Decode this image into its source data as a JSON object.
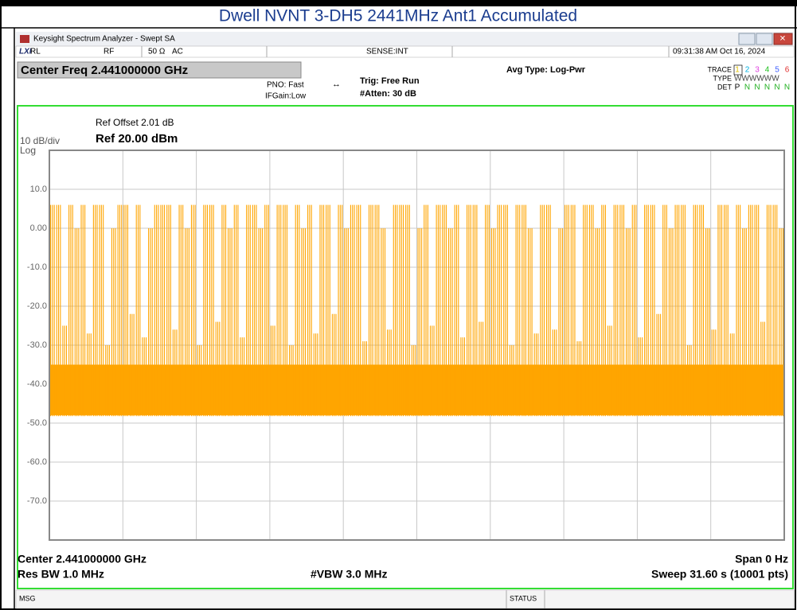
{
  "page_title": "Dwell NVNT 3-DH5 2441MHz Ant1 Accumulated",
  "window": {
    "title": "Keysight Spectrum Analyzer - Swept SA"
  },
  "status_row": {
    "rl": "RL",
    "rf": "RF",
    "impedance": "50 Ω",
    "coupling": "AC",
    "sense": "SENSE:INT",
    "datetime": "09:31:38 AM Oct 16, 2024"
  },
  "settings": {
    "center_freq": "Center Freq 2.441000000 GHz",
    "pno": "PNO: Fast",
    "ifgain": "IFGain:Low",
    "trig": "Trig: Free Run",
    "atten": "#Atten: 30 dB",
    "avg_type": "Avg Type: Log-Pwr",
    "trace_label": "TRACE",
    "trace_numbers": [
      "1",
      "2",
      "3",
      "4",
      "5",
      "6"
    ],
    "type_label": "TYPE",
    "type_value": "WWWWWW",
    "det_label": "DET",
    "det_values": [
      "P",
      "N",
      "N",
      "N",
      "N",
      "N"
    ]
  },
  "display": {
    "ref_offset": "Ref Offset 2.01 dB",
    "scale": "10 dB/div",
    "ref_level": "Ref 20.00 dBm",
    "log": "Log"
  },
  "footer": {
    "center": "Center 2.441000000 GHz",
    "span": "Span 0 Hz",
    "res_bw": "Res BW 1.0 MHz",
    "vbw": "#VBW 3.0 MHz",
    "sweep": "Sweep  31.60 s (10001 pts)"
  },
  "status_bar": {
    "msg": "MSG",
    "status": "STATUS"
  },
  "chart_data": {
    "type": "bursts",
    "color": "#ffa500",
    "noise_floor": -48,
    "dense_level": -35,
    "ylim": [
      -80,
      20
    ],
    "yticks": [
      {
        "value": 10,
        "label": "10.0"
      },
      {
        "value": 0,
        "label": "0.00"
      },
      {
        "value": -10,
        "label": "-10.0"
      },
      {
        "value": -20,
        "label": "-20.0"
      },
      {
        "value": -30,
        "label": "-30.0"
      },
      {
        "value": -40,
        "label": "-40.0"
      },
      {
        "value": -50,
        "label": "-50.0"
      },
      {
        "value": -60,
        "label": "-60.0"
      },
      {
        "value": -70,
        "label": "-70.0"
      }
    ],
    "values": [
      6,
      6,
      -25,
      6,
      0,
      6,
      -27,
      6,
      6,
      -30,
      0,
      6,
      6,
      -22,
      6,
      -28,
      0,
      6,
      6,
      6,
      -26,
      6,
      0,
      6,
      -30,
      6,
      6,
      -24,
      6,
      0,
      6,
      -28,
      6,
      6,
      0,
      6,
      -25,
      6,
      6,
      -30,
      6,
      0,
      6,
      -27,
      6,
      6,
      -22,
      6,
      0,
      6,
      6,
      -29,
      6,
      6,
      0,
      -26,
      6,
      6,
      6,
      -30,
      0,
      6,
      -25,
      6,
      6,
      0,
      6,
      -28,
      6,
      6,
      -24,
      6,
      0,
      6,
      6,
      -30,
      6,
      6,
      0,
      -27,
      6,
      6,
      -26,
      0,
      6,
      6,
      -29,
      6,
      6,
      0,
      6,
      -25,
      6,
      6,
      0,
      6,
      -28,
      6,
      6,
      -22,
      6,
      0,
      6,
      6,
      -30,
      6,
      6,
      0,
      -26,
      6,
      6,
      -27,
      6,
      0,
      6,
      6,
      -24,
      6,
      6,
      0
    ]
  }
}
